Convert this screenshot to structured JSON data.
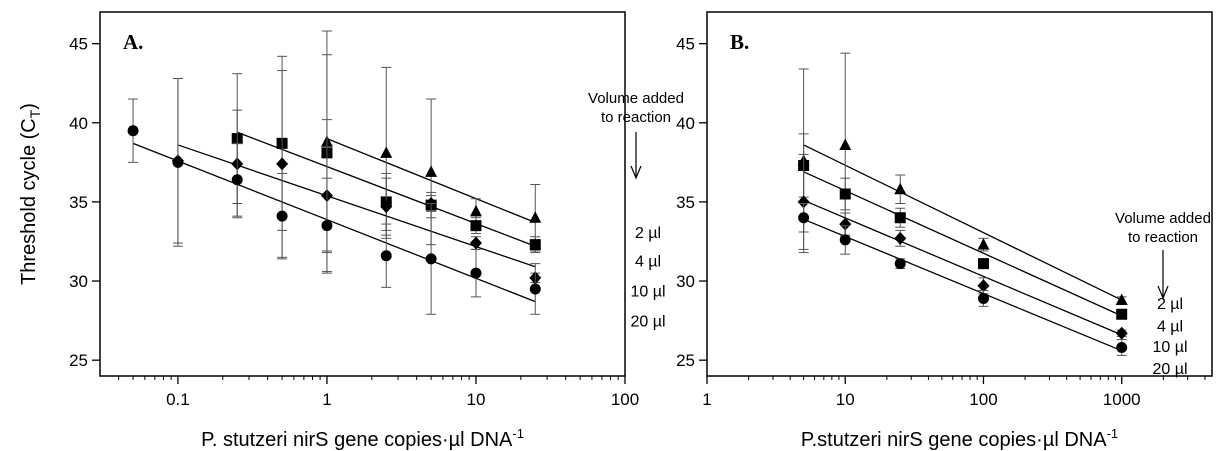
{
  "chart_data": [
    {
      "type": "scatter",
      "panel_label": "A.",
      "xlabel": "P. stutzeri nirS gene copies·µl DNA",
      "xlabel_sup": "-1",
      "ylabel": "Threshold cycle (C",
      "ylabel_sub": "T",
      "ylabel_close": ")",
      "xscale": "log",
      "xlim": [
        0.03,
        100
      ],
      "ylim": [
        24,
        47
      ],
      "xticks": [
        {
          "value": 0.1,
          "label": "0.1"
        },
        {
          "value": 1,
          "label": "1"
        },
        {
          "value": 10,
          "label": "10"
        },
        {
          "value": 100,
          "label": "100"
        }
      ],
      "yticks": [
        25,
        30,
        35,
        40,
        45
      ],
      "grid": false,
      "annotation": [
        "Volume added",
        "to reaction"
      ],
      "annotation_arrow": "down",
      "series": [
        {
          "name": "2 µl",
          "marker": "triangle",
          "x": [
            1,
            2.5,
            5,
            10,
            25
          ],
          "y": [
            38.8,
            38.1,
            36.9,
            34.4,
            34.0
          ],
          "err": [
            7.0,
            5.4,
            4.6,
            0.8,
            2.1
          ],
          "fit": [
            1,
            25,
            39.0,
            33.7
          ]
        },
        {
          "name": "4 µl",
          "marker": "square",
          "x": [
            0.25,
            0.5,
            1,
            2.5,
            5,
            10,
            25
          ],
          "y": [
            39.0,
            38.7,
            38.1,
            35.0,
            34.8,
            33.5,
            32.3
          ],
          "err": [
            4.1,
            5.5,
            6.2,
            1.8,
            0.8,
            0.5,
            0.5
          ],
          "fit": [
            0.25,
            25,
            39.4,
            32.2
          ]
        },
        {
          "name": "10 µl",
          "marker": "diamond",
          "x": [
            0.1,
            0.25,
            0.5,
            1,
            2.5,
            5,
            10,
            25
          ],
          "y": [
            37.6,
            37.4,
            37.4,
            35.4,
            34.7,
            34.9,
            32.4,
            30.2
          ],
          "err": [
            5.2,
            3.4,
            5.9,
            4.8,
            1.8,
            0.5,
            0.4,
            0.3
          ],
          "fit": [
            0.1,
            25,
            38.6,
            30.9
          ]
        },
        {
          "name": "20 µl",
          "marker": "circle",
          "x": [
            0.05,
            0.1,
            0.25,
            0.5,
            1,
            2.5,
            5,
            10,
            25
          ],
          "y": [
            39.5,
            37.5,
            36.4,
            34.1,
            33.5,
            31.6,
            31.4,
            30.5,
            29.5
          ],
          "err": [
            2.0,
            5.3,
            2.3,
            2.7,
            3.0,
            2.0,
            3.5,
            1.5,
            1.6
          ],
          "fit": [
            0.05,
            25,
            38.7,
            28.7
          ]
        }
      ]
    },
    {
      "type": "scatter",
      "panel_label": "B.",
      "xlabel": "P.stutzeri nirS gene copies·µl DNA",
      "xlabel_sup": "-1",
      "ylabel": "",
      "xscale": "log",
      "xlim": [
        1,
        4500
      ],
      "ylim": [
        24,
        47
      ],
      "xticks": [
        {
          "value": 1,
          "label": "1"
        },
        {
          "value": 10,
          "label": "10"
        },
        {
          "value": 100,
          "label": "100"
        },
        {
          "value": 1000,
          "label": "1000"
        }
      ],
      "yticks": [
        25,
        30,
        35,
        40,
        45
      ],
      "grid": false,
      "annotation": [
        "Volume added",
        "to reaction"
      ],
      "annotation_arrow": "down",
      "series": [
        {
          "name": "2 µl",
          "marker": "triangle",
          "x": [
            5,
            10,
            25,
            100,
            1000
          ],
          "y": [
            37.6,
            38.6,
            35.8,
            32.3,
            28.8
          ],
          "err": [
            5.8,
            5.8,
            0.9,
            0.4,
            0.2
          ],
          "fit": [
            5,
            1000,
            38.6,
            28.8
          ]
        },
        {
          "name": "4 µl",
          "marker": "square",
          "x": [
            5,
            10,
            25,
            100,
            1000
          ],
          "y": [
            37.3,
            35.5,
            34.0,
            31.1,
            27.9
          ],
          "err": [
            2.0,
            1.0,
            0.6,
            0.3,
            0.2
          ],
          "fit": [
            5,
            1000,
            36.9,
            27.8
          ]
        },
        {
          "name": "10 µl",
          "marker": "diamond",
          "x": [
            5,
            10,
            25,
            100,
            1000
          ],
          "y": [
            35.0,
            33.6,
            32.7,
            29.7,
            26.7
          ],
          "err": [
            3.0,
            0.7,
            0.5,
            0.5,
            0.2
          ],
          "fit": [
            5,
            1000,
            35.1,
            26.6
          ]
        },
        {
          "name": "20 µl",
          "marker": "circle",
          "x": [
            5,
            10,
            25,
            100,
            1000
          ],
          "y": [
            34.0,
            32.6,
            31.1,
            28.9,
            25.8
          ],
          "err": [
            0.9,
            0.9,
            0.3,
            0.5,
            0.5
          ],
          "fit": [
            5,
            1000,
            33.9,
            25.6
          ]
        }
      ]
    }
  ]
}
